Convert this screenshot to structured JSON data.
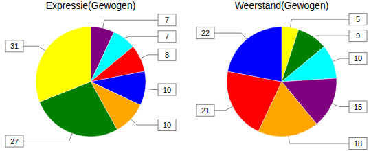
{
  "chart_data": [
    {
      "type": "pie",
      "title": "Expressie(Gewogen)",
      "values": [
        7,
        7,
        8,
        10,
        10,
        27,
        31
      ],
      "colors": [
        "#800080",
        "#00ffff",
        "#ff0000",
        "#0000ff",
        "#ffa500",
        "#008000",
        "#ffff00"
      ],
      "data_labels": true
    },
    {
      "type": "pie",
      "title": "Weerstand(Gewogen)",
      "values": [
        5,
        9,
        10,
        15,
        18,
        21,
        22
      ],
      "colors": [
        "#ffff00",
        "#008000",
        "#00ffff",
        "#800080",
        "#ffa500",
        "#ff0000",
        "#0000ff"
      ],
      "data_labels": true
    }
  ]
}
